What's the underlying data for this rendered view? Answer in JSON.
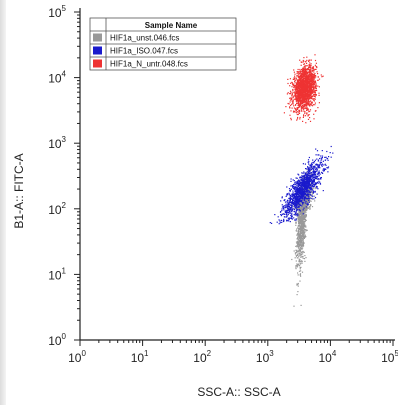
{
  "chart_data": {
    "type": "scatter",
    "xlabel": "SSC-A:: SSC-A",
    "ylabel": "B1-A:: FITC-A",
    "x_scale": "log",
    "y_scale": "log",
    "xlim": [
      1,
      100000
    ],
    "ylim": [
      1,
      100000
    ],
    "x_ticks": [
      1,
      10,
      100,
      1000,
      10000,
      100000
    ],
    "y_ticks": [
      1,
      10,
      100,
      1000,
      10000,
      100000
    ],
    "grid": false,
    "legend": {
      "title": "Sample Name",
      "placement": "top-left"
    },
    "series": [
      {
        "name": "HIF1a_unst.046.fcs",
        "color": "#999999",
        "center": [
          3500,
          100
        ],
        "x_range": [
          1500,
          8000
        ],
        "y_range": [
          2,
          600
        ]
      },
      {
        "name": "HIF1a_ISO.047.fcs",
        "color": "#1a1acc",
        "center": [
          3500,
          200
        ],
        "x_range": [
          1000,
          15000
        ],
        "y_range": [
          60,
          1500
        ]
      },
      {
        "name": "HIF1a_N_untr.048.fcs",
        "color": "#ee3333",
        "center": [
          3800,
          7000
        ],
        "x_range": [
          1500,
          12000
        ],
        "y_range": [
          1500,
          25000
        ]
      }
    ]
  }
}
